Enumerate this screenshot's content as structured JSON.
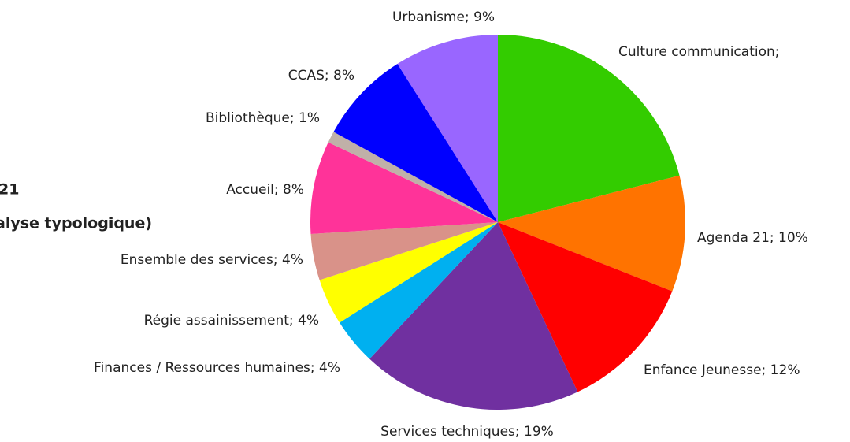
{
  "chart_data": {
    "type": "pie",
    "title_fragments": [
      "21",
      "alyse typologique)"
    ],
    "values": [
      21,
      10,
      12,
      19,
      4,
      4,
      4,
      8,
      1,
      8,
      9
    ],
    "value_labels": [
      "Culture communication;",
      "Agenda 21; 10%",
      "Enfance Jeunesse; 12%",
      "Services techniques; 19%",
      "Finances / Ressources humaines; 4%",
      "Régie assainissement; 4%",
      "Ensemble des services; 4%",
      "Accueil; 8%",
      "Bibliothèque; 1%",
      "CCAS; 8%",
      "Urbanisme; 9%"
    ],
    "colors": [
      "#33cc00",
      "#ff7300",
      "#ff0000",
      "#7030a0",
      "#00b0f0",
      "#ffff00",
      "#d99289",
      "#ff3399",
      "#c0b0a8",
      "#0000ff",
      "#9966ff"
    ]
  }
}
